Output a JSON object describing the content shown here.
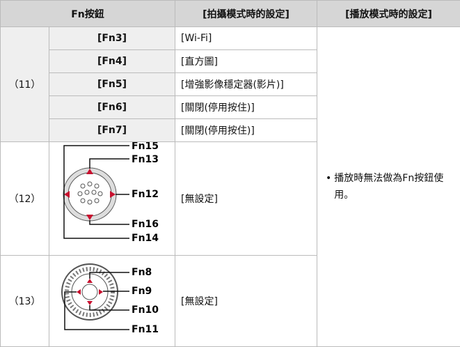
{
  "table": {
    "header": [
      "Fn按鈕",
      "[拍攝模式時的設定]",
      "[播放模式時的設定]"
    ],
    "rows": [
      {
        "group": "（11）",
        "items": [
          {
            "button": "[Fn3]",
            "setting": "[Wi-Fi]"
          },
          {
            "button": "[Fn4]",
            "setting": "[直方圖]"
          },
          {
            "button": "[Fn5]",
            "setting": "[增強影像穩定器(影片)]"
          },
          {
            "button": "[Fn6]",
            "setting": "[關閉(停用按住)]"
          },
          {
            "button": "[Fn7]",
            "setting": "[關閉(停用按住)]"
          }
        ]
      },
      {
        "group": "（12）",
        "diagram_labels": [
          "Fn15",
          "Fn13",
          "Fn12",
          "Fn16",
          "Fn14"
        ],
        "setting": "[無設定]"
      },
      {
        "group": "（13）",
        "diagram_labels": [
          "Fn8",
          "Fn9",
          "Fn10",
          "Fn11"
        ],
        "setting": "[無設定]"
      }
    ],
    "playback_note": "播放時無法做為Fn按鈕使用。"
  }
}
